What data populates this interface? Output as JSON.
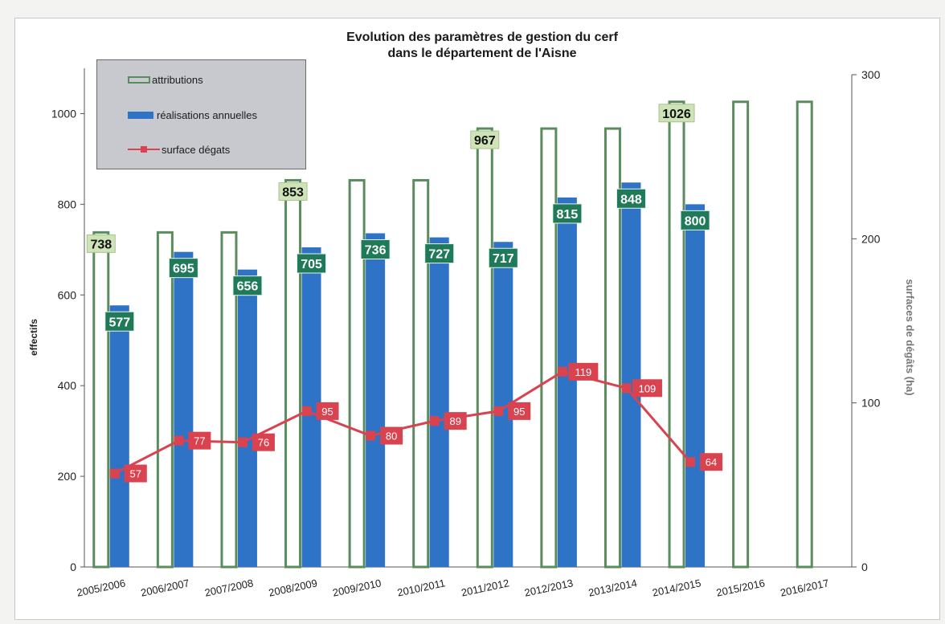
{
  "chart_data": {
    "type": "bar",
    "title": "Evolution des paramètres de gestion du cerf",
    "subtitle": "dans le département de l'Aisne",
    "ylabel": "effectifs",
    "y2label": "surfaces de dégâts (ha)",
    "ylim": [
      0,
      1100
    ],
    "y2lim": [
      0,
      300
    ],
    "yticks": [
      "0",
      "200",
      "400",
      "600",
      "800",
      "1000"
    ],
    "y2ticks": [
      "0",
      "100",
      "200",
      "300"
    ],
    "categories": [
      "2005/2006",
      "2006/2007",
      "2007/2008",
      "2008/2009",
      "2009/2010",
      "2010/2011",
      "2011/2012",
      "2012/2013",
      "2013/2014",
      "2014/2015",
      "2015/2016",
      "2016/2017"
    ],
    "series": [
      {
        "name": "attributions",
        "kind": "bar-outline",
        "color": "#5b8c5e",
        "values": [
          738,
          738,
          738,
          853,
          853,
          853,
          967,
          967,
          967,
          1026,
          1026,
          1026
        ],
        "labels": [
          "738",
          "",
          "",
          "853",
          "",
          "",
          "967",
          "",
          "",
          "1026",
          "",
          ""
        ]
      },
      {
        "name": "réalisations annuelles",
        "kind": "bar-filled",
        "color": "#2f73c6",
        "values": [
          577,
          695,
          656,
          705,
          736,
          727,
          717,
          815,
          848,
          800,
          null,
          null
        ],
        "labels": [
          "577",
          "695",
          "656",
          "705",
          "736",
          "727",
          "717",
          "815",
          "848",
          "800",
          "",
          ""
        ]
      },
      {
        "name": "surface dégats",
        "kind": "line",
        "axis": "right",
        "color": "#d9434f",
        "values": [
          57,
          77,
          76,
          95,
          80,
          89,
          95,
          119,
          109,
          64,
          null,
          null
        ],
        "labels": [
          "57",
          "77",
          "76",
          "95",
          "80",
          "89",
          "95",
          "119",
          "109",
          "64",
          "",
          ""
        ]
      }
    ],
    "legend_position": "top-left",
    "grid": false
  },
  "legend": {
    "items": [
      "attributions",
      "réalisations annuelles",
      "surface dégats"
    ]
  }
}
